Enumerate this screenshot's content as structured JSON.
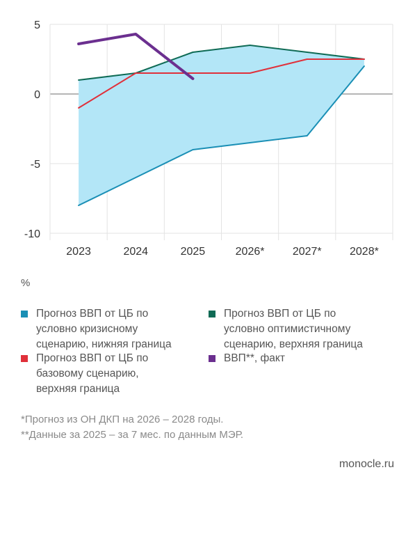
{
  "chart_data": {
    "type": "line",
    "unit_label": "%",
    "categories": [
      "2023",
      "2024",
      "2025",
      "2026*",
      "2027*",
      "2028*"
    ],
    "ylim": [
      -10,
      5
    ],
    "y_ticks": [
      "5",
      "0",
      "-5",
      "-10"
    ],
    "y_tick_values": [
      5,
      0,
      -5,
      -10
    ],
    "grid": true,
    "series": [
      {
        "name": "Прогноз ВВП от ЦБ по условно кризисному сценарию, нижняя граница",
        "color": "#1a8fb5",
        "x": [
          "2023",
          "2024",
          "2025",
          "2026*",
          "2027*",
          "2028*"
        ],
        "values": [
          -8,
          -6,
          -4,
          -3.5,
          -3,
          2
        ]
      },
      {
        "name": "Прогноз ВВП от ЦБ по условно оптимистичному сценарию, верхняя граница",
        "color": "#0f6b55",
        "x": [
          "2023",
          "2024",
          "2025",
          "2026*",
          "2027*",
          "2028*"
        ],
        "values": [
          1,
          1.5,
          3,
          3.5,
          3,
          2.5
        ]
      },
      {
        "name": "Прогноз ВВП от ЦБ по базовому сценарию, верхняя граница",
        "color": "#e0303a",
        "x": [
          "2023",
          "2024",
          "2025",
          "2026*",
          "2027*",
          "2028*"
        ],
        "values": [
          -1,
          1.5,
          1.5,
          1.5,
          2.5,
          2.5
        ]
      },
      {
        "name": "ВВП**, факт",
        "color": "#6b2f8f",
        "x": [
          "2023",
          "2024",
          "2025"
        ],
        "values": [
          3.6,
          4.3,
          1.1
        ]
      }
    ],
    "band_fill": "#b3e6f7"
  },
  "legend": [
    {
      "text": "Прогноз ВВП от ЦБ по\nусловно кризисному\nсценарию, нижняя граница",
      "color": "#1a8fb5"
    },
    {
      "text": "Прогноз ВВП от ЦБ по\nусловно оптимистичному\nсценарию, верхняя граница",
      "color": "#0f6b55"
    },
    {
      "text": "Прогноз ВВП от ЦБ по\nбазовому сценарию,\nверхняя граница",
      "color": "#e0303a"
    },
    {
      "text": "ВВП**, факт",
      "color": "#6b2f8f"
    }
  ],
  "notes": [
    "*Прогноз из ОН ДКП на 2026 – 2028 годы.",
    "**Данные за 2025 – за 7 мес. по данным МЭР."
  ],
  "source": "monocle.ru"
}
